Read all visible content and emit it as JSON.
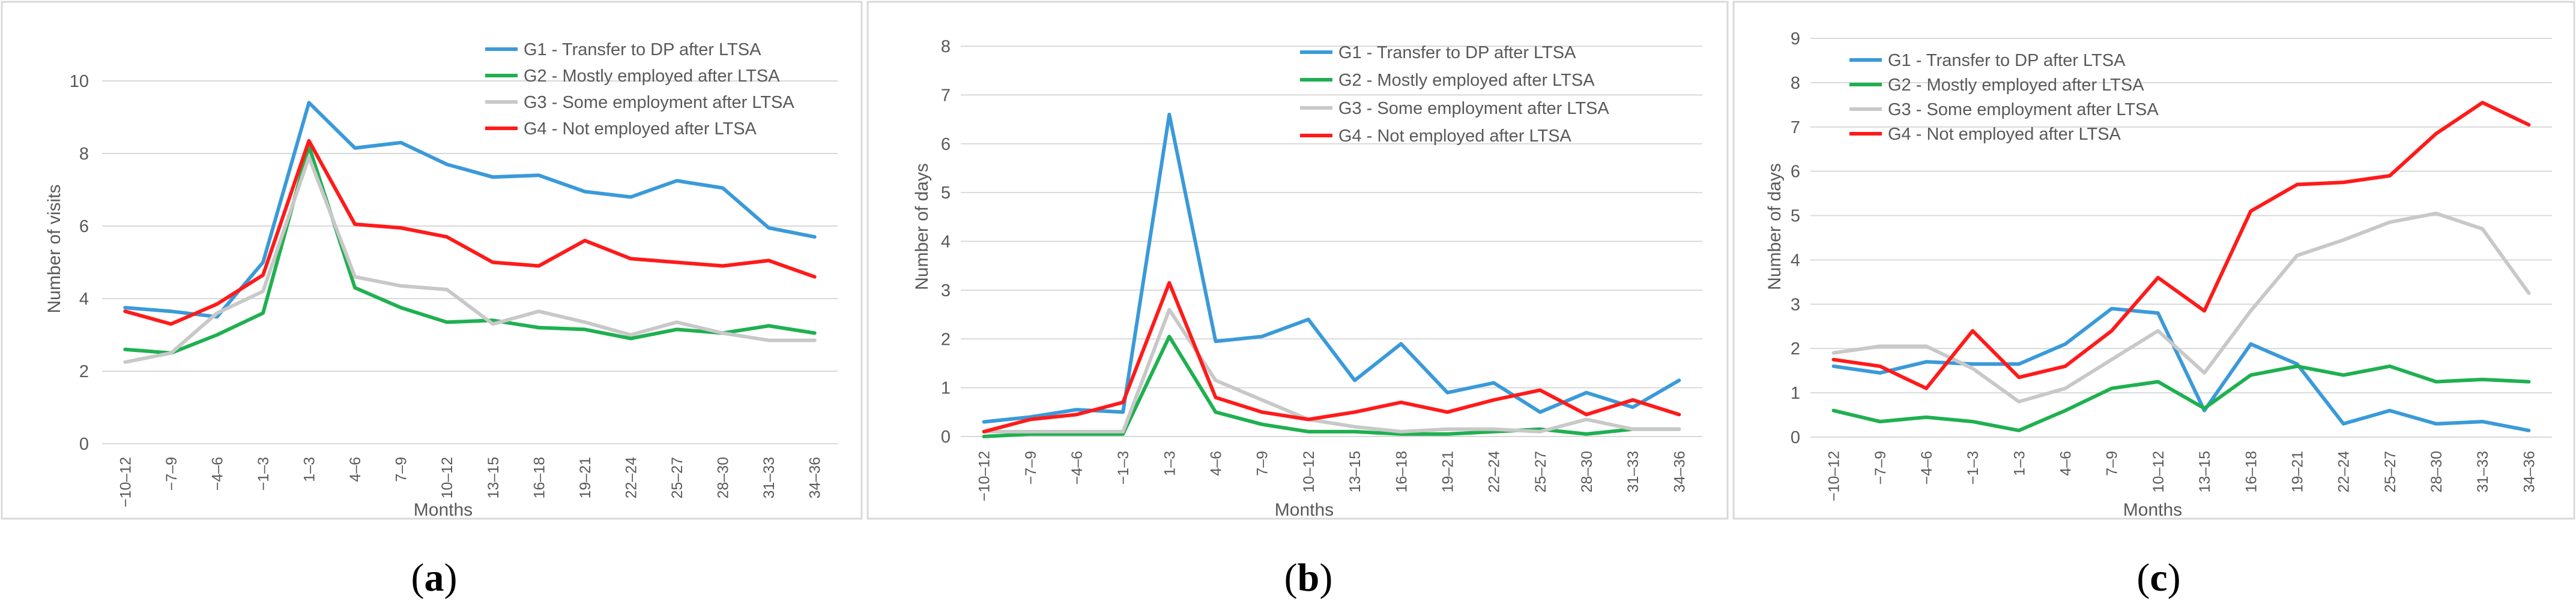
{
  "colors": {
    "G1": "#3a9ad9",
    "G2": "#1fb050",
    "G3": "#c8c8c8",
    "G4": "#ff1a1a",
    "grid": "#d9d9d9",
    "text": "#595959"
  },
  "chart_data": [
    {
      "type": "line",
      "panel_label": "a",
      "xlabel": "Months",
      "ylabel": "Number of visits",
      "ylim": [
        0,
        10
      ],
      "yticks": [
        0,
        2,
        4,
        6,
        8,
        10
      ],
      "grid": true,
      "legend_position": "top-right",
      "categories": [
        "−10–12",
        "−7–9",
        "−4–6",
        "−1–3",
        "1–3",
        "4–6",
        "7–9",
        "10–12",
        "13–15",
        "16–18",
        "19–21",
        "22–24",
        "25–27",
        "28–30",
        "31–33",
        "34–36"
      ],
      "series": [
        {
          "key": "G1",
          "name": "G1 - Transfer to DP  after LTSA",
          "values": [
            3.75,
            3.65,
            3.5,
            5.0,
            9.4,
            8.15,
            8.3,
            7.7,
            7.35,
            7.4,
            6.95,
            6.8,
            7.25,
            7.05,
            5.95,
            5.7
          ]
        },
        {
          "key": "G2",
          "name": "G2 - Mostly employed after LTSA",
          "values": [
            2.6,
            2.5,
            3.0,
            3.6,
            8.2,
            4.3,
            3.75,
            3.35,
            3.4,
            3.2,
            3.15,
            2.9,
            3.15,
            3.05,
            3.25,
            3.05
          ]
        },
        {
          "key": "G3",
          "name": "G3 - Some employment after LTSA",
          "values": [
            2.25,
            2.5,
            3.6,
            4.2,
            7.9,
            4.6,
            4.35,
            4.25,
            3.3,
            3.65,
            3.35,
            3.0,
            3.35,
            3.05,
            2.85,
            2.85
          ]
        },
        {
          "key": "G4",
          "name": "G4 - Not employed after LTSA",
          "values": [
            3.65,
            3.3,
            3.85,
            4.65,
            8.35,
            6.05,
            5.95,
            5.7,
            5.0,
            4.9,
            5.6,
            5.1,
            5.0,
            4.9,
            5.05,
            4.6
          ]
        }
      ]
    },
    {
      "type": "line",
      "panel_label": "b",
      "xlabel": "Months",
      "ylabel": "Number of days",
      "ylim": [
        0,
        8
      ],
      "yticks": [
        0,
        1,
        2,
        3,
        4,
        5,
        6,
        7,
        8
      ],
      "grid": true,
      "legend_position": "top-right",
      "categories": [
        "−10–12",
        "−7–9",
        "−4–6",
        "−1–3",
        "1–3",
        "4–6",
        "7–9",
        "10–12",
        "13–15",
        "16–18",
        "19–21",
        "22–24",
        "25–27",
        "28–30",
        "31–33",
        "34–36"
      ],
      "series": [
        {
          "key": "G1",
          "name": "G1 - Transfer to DP  after LTSA",
          "values": [
            0.3,
            0.4,
            0.55,
            0.5,
            6.6,
            1.95,
            2.05,
            2.4,
            1.15,
            1.9,
            0.9,
            1.1,
            0.5,
            0.9,
            0.6,
            1.15
          ]
        },
        {
          "key": "G2",
          "name": "G2 - Mostly employed after LTSA",
          "values": [
            0.0,
            0.05,
            0.05,
            0.05,
            2.05,
            0.5,
            0.25,
            0.1,
            0.1,
            0.05,
            0.05,
            0.1,
            0.15,
            0.05,
            0.15,
            0.15
          ]
        },
        {
          "key": "G3",
          "name": "G3 - Some employment after LTSA",
          "values": [
            0.1,
            0.1,
            0.1,
            0.1,
            2.6,
            1.15,
            0.75,
            0.35,
            0.2,
            0.1,
            0.15,
            0.15,
            0.1,
            0.35,
            0.15,
            0.15
          ]
        },
        {
          "key": "G4",
          "name": "G4 - Not employed after LTSA",
          "values": [
            0.1,
            0.35,
            0.45,
            0.7,
            3.15,
            0.8,
            0.5,
            0.35,
            0.5,
            0.7,
            0.5,
            0.75,
            0.95,
            0.45,
            0.75,
            0.45
          ]
        }
      ]
    },
    {
      "type": "line",
      "panel_label": "c",
      "xlabel": "Months",
      "ylabel": "Number of days",
      "ylim": [
        0,
        9
      ],
      "yticks": [
        0,
        1,
        2,
        3,
        4,
        5,
        6,
        7,
        8,
        9
      ],
      "grid": true,
      "legend_position": "top-left",
      "categories": [
        "−10–12",
        "−7–9",
        "−4–6",
        "−1–3",
        "1–3",
        "4–6",
        "7–9",
        "10–12",
        "13–15",
        "16–18",
        "19–21",
        "22–24",
        "25–27",
        "28–30",
        "31–33",
        "34–36"
      ],
      "series": [
        {
          "key": "G1",
          "name": "G1 - Transfer to DP  after LTSA",
          "values": [
            1.6,
            1.45,
            1.7,
            1.65,
            1.65,
            2.1,
            2.9,
            2.8,
            0.6,
            2.1,
            1.65,
            0.3,
            0.6,
            0.3,
            0.35,
            0.15
          ]
        },
        {
          "key": "G2",
          "name": "G2 - Mostly employed after LTSA",
          "values": [
            0.6,
            0.35,
            0.45,
            0.35,
            0.15,
            0.6,
            1.1,
            1.25,
            0.65,
            1.4,
            1.6,
            1.4,
            1.6,
            1.25,
            1.3,
            1.25
          ]
        },
        {
          "key": "G3",
          "name": "G3 - Some employment after LTSA",
          "values": [
            1.9,
            2.05,
            2.05,
            1.55,
            0.8,
            1.1,
            1.75,
            2.4,
            1.45,
            2.85,
            4.1,
            4.45,
            4.85,
            5.05,
            4.7,
            3.25
          ]
        },
        {
          "key": "G4",
          "name": "G4 - Not employed after LTSA",
          "values": [
            1.75,
            1.6,
            1.1,
            2.4,
            1.35,
            1.6,
            2.4,
            3.6,
            2.85,
            5.1,
            5.7,
            5.75,
            5.9,
            6.85,
            7.55,
            7.05
          ]
        }
      ]
    }
  ]
}
